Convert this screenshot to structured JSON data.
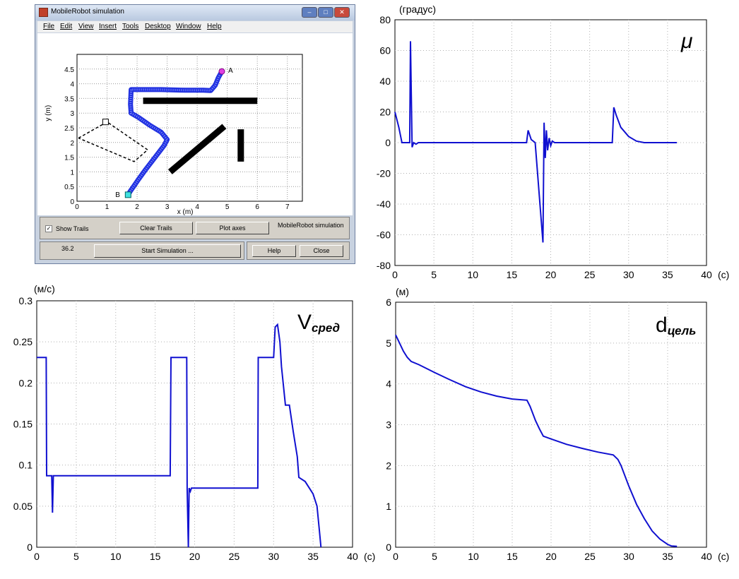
{
  "window": {
    "title": "MobileRobot simulation",
    "menu": [
      "File",
      "Edit",
      "View",
      "Insert",
      "Tools",
      "Desktop",
      "Window",
      "Help"
    ],
    "controls": {
      "show_trails_label": "Show Trails",
      "show_trails_checked": true,
      "clear_trails_label": "Clear Trails",
      "plot_axes_label": "Plot axes",
      "sim_name": "MobileRobot simulation",
      "time_value": "36.2",
      "start_label": "Start Simulation ...",
      "help_label": "Help",
      "close_label": "Close"
    }
  },
  "chart_data": [
    {
      "type": "line",
      "id": "trajectory",
      "xlabel": "x (m)",
      "ylabel": "y (m)",
      "xlim": [
        0,
        7.5
      ],
      "ylim": [
        0,
        5
      ],
      "xticks": [
        0,
        1,
        2,
        3,
        4,
        5,
        6,
        7
      ],
      "yticks": [
        0,
        0.5,
        1,
        1.5,
        2,
        2.5,
        3,
        3.5,
        4,
        4.5
      ],
      "grid": true,
      "series": [
        {
          "x": [
            1.7,
            1.78,
            1.88,
            2.05,
            2.3,
            2.6,
            2.9,
            3.0,
            2.8,
            2.4,
            2.05,
            1.8,
            1.78,
            1.8,
            2.1,
            2.8,
            3.6,
            4.2,
            4.45,
            4.6,
            4.7,
            4.82
          ],
          "y": [
            0.22,
            0.35,
            0.5,
            0.75,
            1.1,
            1.5,
            1.9,
            2.1,
            2.35,
            2.6,
            2.85,
            3.0,
            3.3,
            3.8,
            3.8,
            3.8,
            3.78,
            3.78,
            3.77,
            3.95,
            4.2,
            4.42
          ]
        }
      ],
      "obstacles": [
        {
          "x": [
            2.2,
            6.0
          ],
          "y": [
            3.42,
            3.42
          ]
        },
        {
          "x": [
            3.1,
            4.9
          ],
          "y": [
            1.0,
            2.55
          ]
        },
        {
          "x": [
            5.45,
            5.45
          ],
          "y": [
            1.35,
            2.45
          ]
        }
      ],
      "dashed_outline": {
        "x": [
          0.05,
          1.0,
          2.35,
          1.9,
          0.05
        ],
        "y": [
          2.15,
          2.7,
          1.75,
          1.35,
          2.15
        ]
      },
      "points": [
        {
          "label": "A",
          "x": 4.82,
          "y": 4.42,
          "color": "#e040e0"
        },
        {
          "label": "B",
          "x": 1.7,
          "y": 0.22,
          "color": "#40e0e0"
        }
      ],
      "start_marker": {
        "x": 0.95,
        "y": 2.7
      }
    },
    {
      "type": "line",
      "id": "mu",
      "title": "μ",
      "ylabel": "(градус)",
      "xunit": "(с)",
      "xlim": [
        0,
        40
      ],
      "ylim": [
        -80,
        80
      ],
      "xticks": [
        0,
        5,
        10,
        15,
        20,
        25,
        30,
        35,
        40
      ],
      "yticks": [
        -80,
        -60,
        -40,
        -20,
        0,
        20,
        40,
        60,
        80
      ],
      "grid": true,
      "series": [
        {
          "x": [
            0,
            0.5,
            0.9,
            1.9,
            2.0,
            2.1,
            2.2,
            2.4,
            2.7,
            3,
            16.9,
            17.1,
            17.5,
            18.0,
            19.0,
            19.15,
            19.3,
            19.45,
            19.6,
            19.8,
            20.0,
            20.2,
            20.5,
            21,
            27.9,
            28.1,
            28.4,
            29,
            30,
            31,
            32,
            34,
            36.2
          ],
          "y": [
            20,
            10,
            0,
            0,
            66,
            30,
            -3,
            0,
            -1,
            0,
            0,
            8,
            2,
            0,
            -65,
            13,
            -10,
            8,
            -5,
            3,
            -2,
            1,
            0,
            0,
            0,
            23,
            18,
            10,
            4,
            1,
            0,
            0,
            0
          ]
        }
      ]
    },
    {
      "type": "line",
      "id": "v",
      "title": "Vсред",
      "ylabel": "(м/с)",
      "xunit": "(с)",
      "xlim": [
        0,
        40
      ],
      "ylim": [
        0,
        0.3
      ],
      "xticks": [
        0,
        5,
        10,
        15,
        20,
        25,
        30,
        35,
        40
      ],
      "yticks": [
        0,
        0.05,
        0.1,
        0.15,
        0.2,
        0.25,
        0.3
      ],
      "grid": true,
      "series": [
        {
          "x": [
            0,
            1.2,
            1.25,
            1.9,
            2.0,
            2.1,
            2.3,
            16.9,
            17.0,
            19.0,
            19.05,
            19.2,
            19.3,
            19.45,
            19.6,
            20,
            28.0,
            28.05,
            30.0,
            30.2,
            30.5,
            30.8,
            31.0,
            31.5,
            32,
            32.5,
            33,
            33.2,
            34,
            35,
            35.5,
            35.8,
            36.0
          ],
          "y": [
            0.231,
            0.231,
            0.087,
            0.087,
            0.042,
            0.087,
            0.087,
            0.087,
            0.231,
            0.231,
            0.072,
            0.0,
            0.072,
            0.068,
            0.072,
            0.072,
            0.072,
            0.231,
            0.231,
            0.268,
            0.271,
            0.25,
            0.22,
            0.173,
            0.173,
            0.14,
            0.11,
            0.085,
            0.08,
            0.065,
            0.05,
            0.02,
            0.0
          ]
        }
      ]
    },
    {
      "type": "line",
      "id": "d",
      "title": "dцель",
      "ylabel": "(м)",
      "xunit": "(с)",
      "xlim": [
        0,
        40
      ],
      "ylim": [
        0,
        6
      ],
      "xticks": [
        0,
        5,
        10,
        15,
        20,
        25,
        30,
        35,
        40
      ],
      "yticks": [
        0,
        1,
        2,
        3,
        4,
        5,
        6
      ],
      "grid": true,
      "series": [
        {
          "x": [
            0,
            0.5,
            1,
            1.5,
            2,
            3,
            5,
            7,
            9,
            11,
            13,
            15,
            16.9,
            17.3,
            18,
            18.5,
            19,
            20,
            22,
            24,
            26,
            28,
            28.6,
            29,
            30,
            31,
            32,
            33,
            34,
            35,
            35.5,
            36.2
          ],
          "y": [
            5.2,
            5.0,
            4.8,
            4.65,
            4.55,
            4.47,
            4.28,
            4.1,
            3.93,
            3.8,
            3.7,
            3.63,
            3.6,
            3.45,
            3.1,
            2.9,
            2.72,
            2.65,
            2.52,
            2.42,
            2.33,
            2.26,
            2.15,
            2.0,
            1.5,
            1.05,
            0.7,
            0.4,
            0.2,
            0.07,
            0.03,
            0.02
          ]
        }
      ]
    }
  ]
}
